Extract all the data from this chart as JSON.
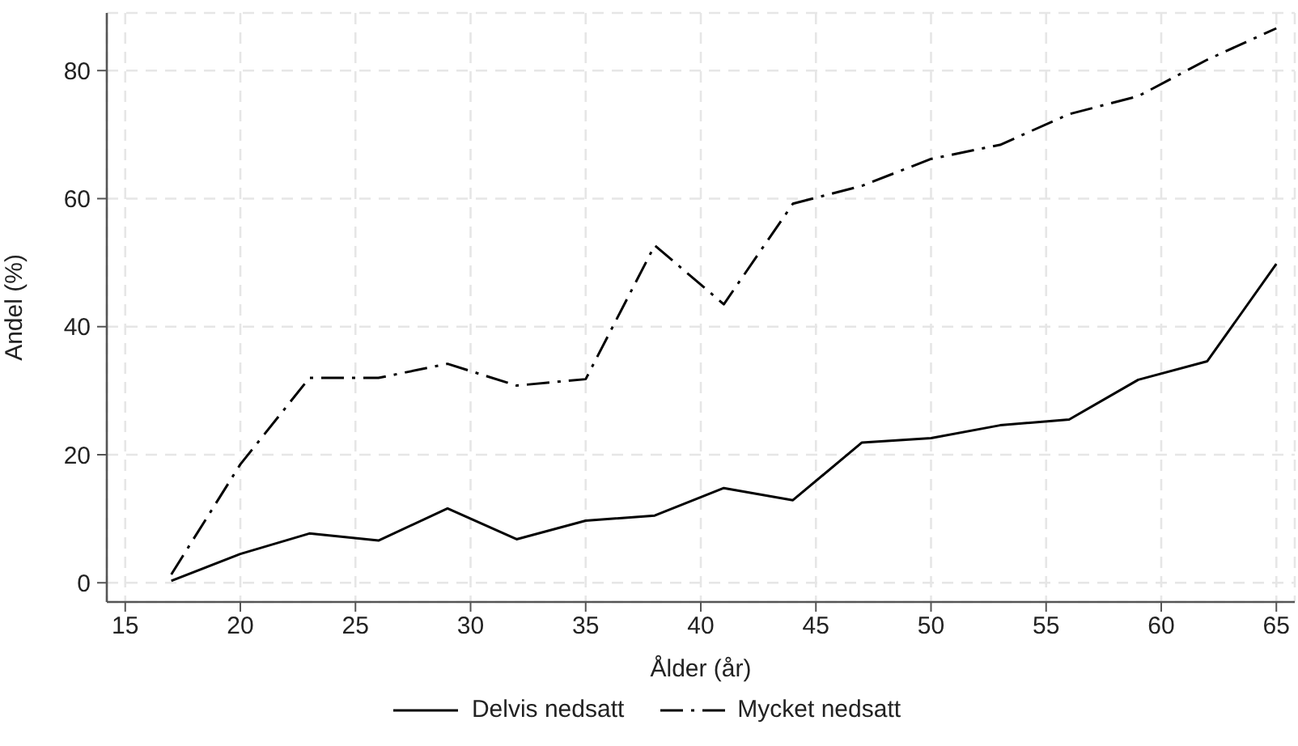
{
  "chart_data": {
    "type": "line",
    "xlabel": "Ålder (år)",
    "ylabel": "Andel (%)",
    "x": [
      17,
      20,
      23,
      26,
      29,
      32,
      35,
      38,
      41,
      44,
      47,
      50,
      53,
      56,
      59,
      62,
      65
    ],
    "series": [
      {
        "name": "Delvis nedsatt",
        "color": "#000000",
        "line_style": "solid",
        "values": [
          0.3,
          4.5,
          7.7,
          6.6,
          11.6,
          6.8,
          9.7,
          10.5,
          14.8,
          12.9,
          21.9,
          22.6,
          24.6,
          25.5,
          31.7,
          34.6,
          49.8
        ]
      },
      {
        "name": "Mycket nedsatt",
        "color": "#000000",
        "line_style": "dashdot",
        "values": [
          1.3,
          18.5,
          32,
          32,
          34.2,
          30.8,
          31.8,
          52.7,
          43.5,
          59.2,
          62,
          66.2,
          68.4,
          73.2,
          76,
          81.7,
          86.6
        ]
      }
    ],
    "xlim": [
      14.2,
      65.8
    ],
    "xticks": [
      15,
      20,
      25,
      30,
      35,
      40,
      45,
      50,
      55,
      60,
      65
    ],
    "ylim": [
      -3,
      89
    ],
    "yticks": [
      0,
      20,
      40,
      60,
      80
    ],
    "grid": true,
    "legend": "bottom"
  }
}
